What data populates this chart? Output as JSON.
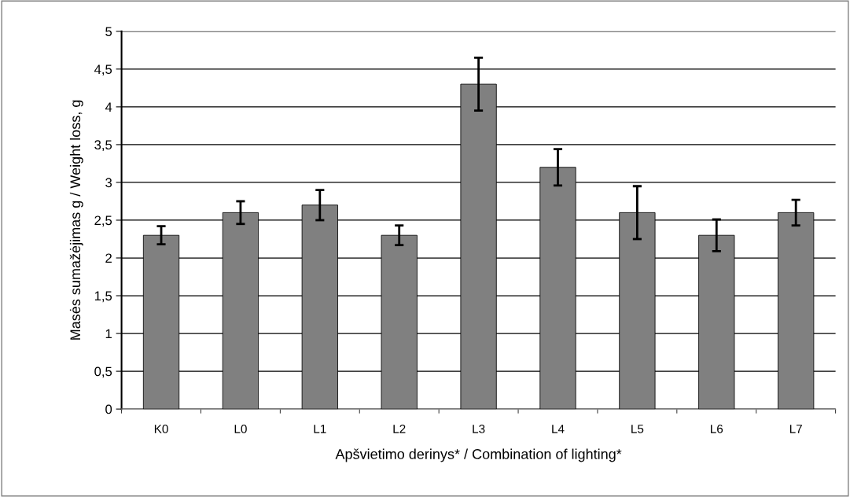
{
  "chart_data": {
    "type": "bar",
    "xlabel": "Apšvietimo derinys* / Combination of lighting*",
    "ylabel": "Masės sumažėjimas g / Weight loss, g",
    "categories": [
      "K0",
      "L0",
      "L1",
      "L2",
      "L3",
      "L4",
      "L5",
      "L6",
      "L7"
    ],
    "values": [
      2.3,
      2.6,
      2.7,
      2.3,
      4.3,
      3.2,
      2.6,
      2.3,
      2.6
    ],
    "errors": [
      0.12,
      0.15,
      0.2,
      0.13,
      0.35,
      0.24,
      0.35,
      0.21,
      0.17
    ],
    "color": "#808080",
    "ylim": [
      0,
      5
    ],
    "yticks": [
      0,
      {
        "value": 0.5,
        "label": "0,5"
      },
      1,
      {
        "value": 1.5,
        "label": "1,5"
      },
      2,
      {
        "value": 2.5,
        "label": "2,5"
      },
      3,
      {
        "value": 3.5,
        "label": "3,5"
      },
      4,
      {
        "value": 4.5,
        "label": "4,5"
      },
      5
    ],
    "grid": "y"
  }
}
